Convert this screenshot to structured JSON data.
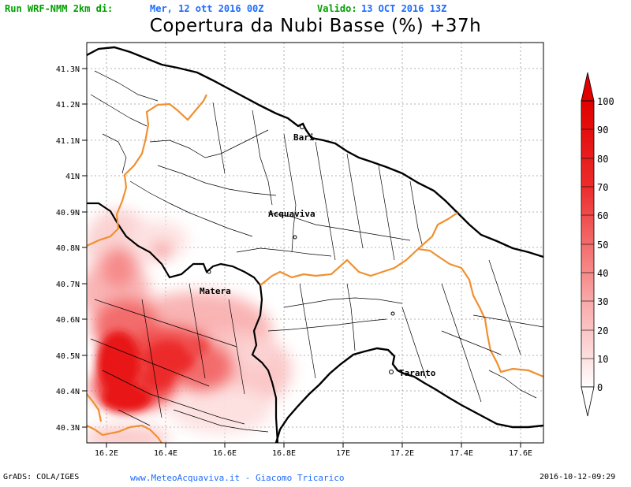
{
  "header": {
    "run_label": "Run WRF-NMM 2km di:",
    "run_date": "Mer, 12 ott 2016 00Z",
    "valid_label": "Valido:",
    "valid_date": "13 OCT 2016 13Z"
  },
  "title": "Copertura da Nubi Basse (%) +37h",
  "axes": {
    "lat_labels": [
      "41.3N",
      "41.2N",
      "41.1N",
      "41N",
      "40.9N",
      "40.8N",
      "40.7N",
      "40.6N",
      "40.5N",
      "40.4N",
      "40.3N"
    ],
    "lon_labels": [
      "16.2E",
      "16.4E",
      "16.6E",
      "16.8E",
      "17E",
      "17.2E",
      "17.4E",
      "17.6E"
    ]
  },
  "cities": [
    {
      "name": "Bari"
    },
    {
      "name": "Acquaviva"
    },
    {
      "name": "Matera"
    },
    {
      "name": "Taranto"
    }
  ],
  "colorbar": {
    "labels": [
      "0",
      "10",
      "20",
      "30",
      "40",
      "50",
      "60",
      "70",
      "80",
      "90",
      "100"
    ],
    "colors": [
      "#ffffff",
      "#fde0e0",
      "#fbc5c5",
      "#f9a8a8",
      "#f68a8a",
      "#f36c6c",
      "#f04c4c",
      "#ec2c2c",
      "#e81414",
      "#e00000"
    ]
  },
  "colors": {
    "coast": "#000000",
    "region_border": "#f09030",
    "cloud": "#ff0000"
  },
  "footer": {
    "left": "GrADS: COLA/IGES",
    "center": "www.MeteoAcquaviva.it - Giacomo Tricarico",
    "right": "2016-10-12-09:29"
  }
}
